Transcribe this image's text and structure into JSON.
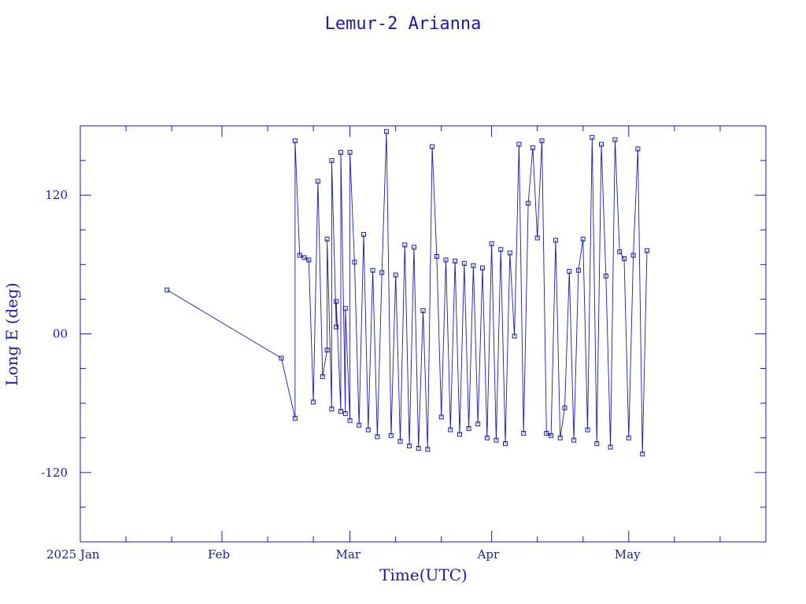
{
  "chart_data": {
    "type": "line",
    "title": "Lemur-2 Arianna",
    "xlabel": "Time(UTC)",
    "ylabel": "Long E (deg)",
    "ylim": [
      -180,
      180
    ],
    "xlim": [
      "2025-01-01",
      "2025-05-31"
    ],
    "x_tick_labels": [
      "2025 Jan",
      "Feb",
      "Mar",
      "Apr",
      "May"
    ],
    "y_tick_labels": [
      "120",
      "00",
      "-120"
    ],
    "y_tick_values": [
      120,
      0,
      -120
    ],
    "color": "#1a1aa6",
    "marker": "square",
    "grid": false,
    "legend": "none",
    "series": [
      {
        "x": [
          "2025-01-20",
          "2025-02-14",
          "2025-02-17",
          "2025-02-17",
          "2025-02-18",
          "2025-02-19",
          "2025-02-20",
          "2025-02-21",
          "2025-02-22",
          "2025-02-23",
          "2025-02-24",
          "2025-02-24",
          "2025-02-25",
          "2025-02-25",
          "2025-02-26",
          "2025-02-26",
          "2025-02-27",
          "2025-02-27",
          "2025-02-28",
          "2025-02-28",
          "2025-03-01",
          "2025-03-01",
          "2025-03-02",
          "2025-03-03",
          "2025-03-04",
          "2025-03-05",
          "2025-03-06",
          "2025-03-07",
          "2025-03-08",
          "2025-03-09",
          "2025-03-10",
          "2025-03-11",
          "2025-03-12",
          "2025-03-13",
          "2025-03-14",
          "2025-03-15",
          "2025-03-16",
          "2025-03-17",
          "2025-03-18",
          "2025-03-19",
          "2025-03-20",
          "2025-03-21",
          "2025-03-22",
          "2025-03-23",
          "2025-03-24",
          "2025-03-25",
          "2025-03-26",
          "2025-03-27",
          "2025-03-28",
          "2025-03-29",
          "2025-03-30",
          "2025-03-31",
          "2025-04-01",
          "2025-04-02",
          "2025-04-03",
          "2025-04-04",
          "2025-04-05",
          "2025-04-06",
          "2025-04-07",
          "2025-04-08",
          "2025-04-09",
          "2025-04-10",
          "2025-04-11",
          "2025-04-12",
          "2025-04-13",
          "2025-04-14",
          "2025-04-15",
          "2025-04-16",
          "2025-04-17",
          "2025-04-18",
          "2025-04-19",
          "2025-04-20",
          "2025-04-21",
          "2025-04-22",
          "2025-04-23",
          "2025-04-24",
          "2025-04-25",
          "2025-04-26",
          "2025-04-27",
          "2025-04-28",
          "2025-04-29",
          "2025-04-30",
          "2025-05-01",
          "2025-05-02",
          "2025-05-03",
          "2025-05-04",
          "2025-05-05"
        ],
        "y": [
          38,
          -21,
          -73,
          167,
          68,
          66,
          64,
          -59,
          132,
          -37,
          -14,
          82,
          -65,
          150,
          6,
          28,
          -67,
          157,
          -69,
          22,
          -75,
          157,
          62,
          -79,
          86,
          -83,
          55,
          -89,
          53,
          175,
          -88,
          51,
          -93,
          77,
          -97,
          75,
          -99,
          20,
          -100,
          162,
          67,
          -72,
          64,
          -83,
          63,
          -87,
          61,
          -82,
          59,
          -78,
          57,
          -90,
          78,
          -92,
          73,
          -95,
          70,
          -2,
          164,
          -86,
          113,
          161,
          83,
          167,
          -86,
          -88,
          81,
          -90,
          -64,
          54,
          -92,
          55,
          82,
          -83,
          170,
          -95,
          164,
          50,
          -98,
          168,
          71,
          65,
          -90,
          68,
          160,
          -104,
          72
        ]
      }
    ]
  }
}
